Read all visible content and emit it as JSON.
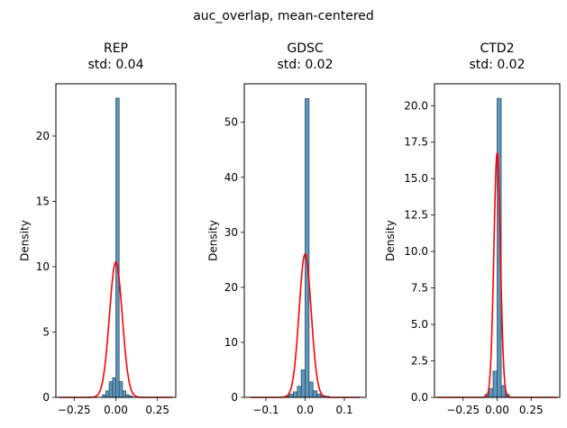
{
  "chart_data": [
    {
      "type": "histogram",
      "suptitle": "auc_overlap, mean-centered",
      "title_line1": "REP",
      "title_line2": "std: 0.04",
      "ylabel": "Density",
      "xlim": [
        -0.36,
        0.36
      ],
      "ylim": [
        0,
        24
      ],
      "xticks": [
        -0.25,
        0.0,
        0.25
      ],
      "xtick_labels": [
        "−0.25",
        "0.00",
        "0.25"
      ],
      "yticks": [
        0,
        5,
        10,
        15,
        20
      ],
      "ytick_labels": [
        "0",
        "5",
        "10",
        "15",
        "20"
      ],
      "bin_edges": [
        -0.08,
        -0.06,
        -0.04,
        -0.02,
        0.0,
        0.02,
        0.04,
        0.06,
        0.08,
        0.1
      ],
      "densities": [
        0.2,
        0.5,
        1.2,
        1.5,
        22.9,
        1.2,
        0.5,
        0.2,
        0.1
      ],
      "normal": {
        "mu": 0.0,
        "sigma": 0.0385,
        "curve_xlim": [
          -0.34,
          0.34
        ]
      },
      "bar_color": "#4c8bb5",
      "curve_color": "#ff0000"
    },
    {
      "type": "histogram",
      "title_line1": "GDSC",
      "title_line2": "std: 0.02",
      "ylabel": "Density",
      "xlim": [
        -0.155,
        0.155
      ],
      "ylim": [
        0,
        57
      ],
      "xticks": [
        -0.1,
        0.0,
        0.1
      ],
      "xtick_labels": [
        "−0.1",
        "0.0",
        "0.1"
      ],
      "yticks": [
        0,
        10,
        20,
        30,
        40,
        50
      ],
      "ytick_labels": [
        "0",
        "10",
        "20",
        "30",
        "40",
        "50"
      ],
      "bin_edges": [
        -0.05,
        -0.04,
        -0.03,
        -0.02,
        -0.01,
        0.0,
        0.01,
        0.02,
        0.03,
        0.04,
        0.05,
        0.06
      ],
      "densities": [
        0.3,
        0.6,
        1.0,
        2.0,
        5.0,
        54.3,
        2.8,
        1.2,
        0.6,
        0.3,
        0.2
      ],
      "normal": {
        "mu": 0.0,
        "sigma": 0.0153,
        "curve_xlim": [
          -0.14,
          0.14
        ]
      },
      "bar_color": "#4c8bb5",
      "curve_color": "#ff0000"
    },
    {
      "type": "histogram",
      "title_line1": "CTD2",
      "title_line2": "std: 0.02",
      "ylabel": "Density",
      "xlim": [
        -0.46,
        0.46
      ],
      "ylim": [
        0,
        21.5
      ],
      "xticks": [
        -0.25,
        0.0,
        0.25
      ],
      "xtick_labels": [
        "−0.25",
        "0.00",
        "0.25"
      ],
      "yticks": [
        0,
        2.5,
        5,
        7.5,
        10,
        12.5,
        15,
        17.5,
        20
      ],
      "ytick_labels": [
        "0.0",
        "2.5",
        "5.0",
        "7.5",
        "10.0",
        "12.5",
        "15.0",
        "17.5",
        "20.0"
      ],
      "bin_edges": [
        -0.09,
        -0.06,
        -0.03,
        0.0,
        0.03,
        0.06,
        0.09
      ],
      "densities": [
        0.2,
        0.6,
        1.8,
        20.5,
        0.8,
        0.2
      ],
      "normal": {
        "mu": 0.0,
        "sigma": 0.0238,
        "curve_xlim": [
          -0.44,
          0.44
        ]
      },
      "bar_color": "#4c8bb5",
      "curve_color": "#ff0000"
    }
  ]
}
